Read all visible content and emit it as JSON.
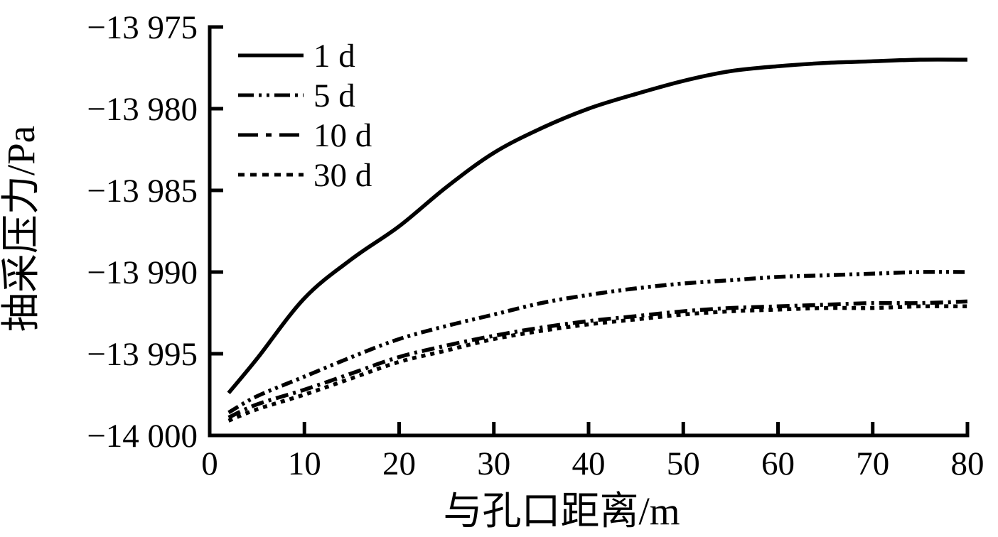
{
  "chart_data": {
    "type": "line",
    "title": "",
    "xlabel": "与孔口距离/m",
    "ylabel": "抽采压力/Pa",
    "xlim": [
      0,
      80
    ],
    "ylim": [
      -14000,
      -13975
    ],
    "grid": false,
    "legend_position": "upper-left-inside",
    "background": "#ffffff",
    "line_color": "#000000",
    "x_ticks": [
      0,
      10,
      20,
      30,
      40,
      50,
      60,
      70,
      80
    ],
    "x_tick_labels": [
      "0",
      "10",
      "20",
      "30",
      "40",
      "50",
      "60",
      "70",
      "80"
    ],
    "y_ticks": [
      -13975,
      -13980,
      -13985,
      -13990,
      -13995,
      -14000
    ],
    "y_tick_labels": [
      "−13 975",
      "−13 980",
      "−13 985",
      "−13 990",
      "−13 995",
      "−14 000"
    ],
    "x": [
      2,
      5,
      10,
      15,
      20,
      25,
      30,
      35,
      40,
      45,
      50,
      55,
      60,
      65,
      70,
      75,
      80
    ],
    "series": [
      {
        "name": "30 d",
        "line_style": "dotted",
        "values": [
          -13999.1,
          -13998.4,
          -13997.5,
          -13996.5,
          -13995.5,
          -13994.8,
          -13994.1,
          -13993.6,
          -13993.2,
          -13992.9,
          -13992.6,
          -13992.4,
          -13992.3,
          -13992.2,
          -13992.2,
          -13992.1,
          -13992.1
        ]
      },
      {
        "name": "10 d",
        "line_style": "dash-dot",
        "values": [
          -13998.9,
          -13998.1,
          -13997.2,
          -13996.2,
          -13995.2,
          -13994.5,
          -13993.9,
          -13993.4,
          -13993.0,
          -13992.7,
          -13992.4,
          -13992.2,
          -13992.1,
          -13992.0,
          -13991.9,
          -13991.9,
          -13991.8
        ]
      },
      {
        "name": "5 d",
        "line_style": "dash-dot-dot",
        "values": [
          -13998.6,
          -13997.6,
          -13996.4,
          -13995.2,
          -13994.1,
          -13993.3,
          -13992.6,
          -13991.9,
          -13991.4,
          -13991.0,
          -13990.7,
          -13990.5,
          -13990.3,
          -13990.2,
          -13990.1,
          -13990.0,
          -13990.0
        ]
      },
      {
        "name": "1 d",
        "line_style": "solid",
        "values": [
          -13997.4,
          -13995.3,
          -13991.6,
          -13989.2,
          -13987.2,
          -13984.8,
          -13982.7,
          -13981.2,
          -13980.0,
          -13979.1,
          -13978.3,
          -13977.7,
          -13977.4,
          -13977.2,
          -13977.1,
          -13977.0,
          -13977.0
        ]
      }
    ]
  }
}
